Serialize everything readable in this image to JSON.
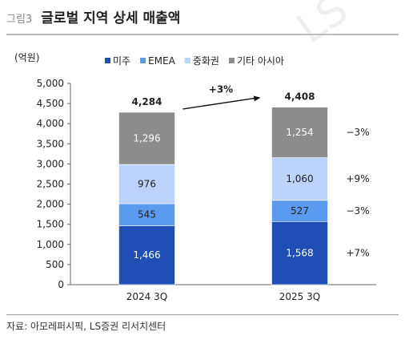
{
  "figure": {
    "label": "그림3",
    "title": "글로벌 지역 상세 매출액",
    "source": "자료: 아모레퍼시픽, LS증권 리서치센터",
    "watermark": "LS"
  },
  "chart_data": {
    "type": "bar",
    "stacked": true,
    "title": "",
    "ylabel": "(억원)",
    "xlabel": "",
    "ylim": [
      0,
      5000
    ],
    "yticks": [
      0,
      500,
      1000,
      1500,
      2000,
      2500,
      3000,
      3500,
      4000,
      4500,
      5000
    ],
    "grid": false,
    "legend_position": "top",
    "categories": [
      "2024 3Q",
      "2025 3Q"
    ],
    "totals": [
      4284,
      4408
    ],
    "series": [
      {
        "name": "미주",
        "values": [
          1466,
          1568
        ],
        "color": "#1f4fb4"
      },
      {
        "name": "EMEA",
        "values": [
          545,
          527
        ],
        "color": "#5b9bef"
      },
      {
        "name": "중화권",
        "values": [
          976,
          1060
        ],
        "color": "#bcd3fb"
      },
      {
        "name": "기타 아시아",
        "values": [
          1296,
          1254
        ],
        "color": "#8c8c8c"
      }
    ],
    "growth_total": "+3%",
    "growth_by_series": [
      "+7%",
      "-3%",
      "+9%",
      "-3%"
    ]
  }
}
